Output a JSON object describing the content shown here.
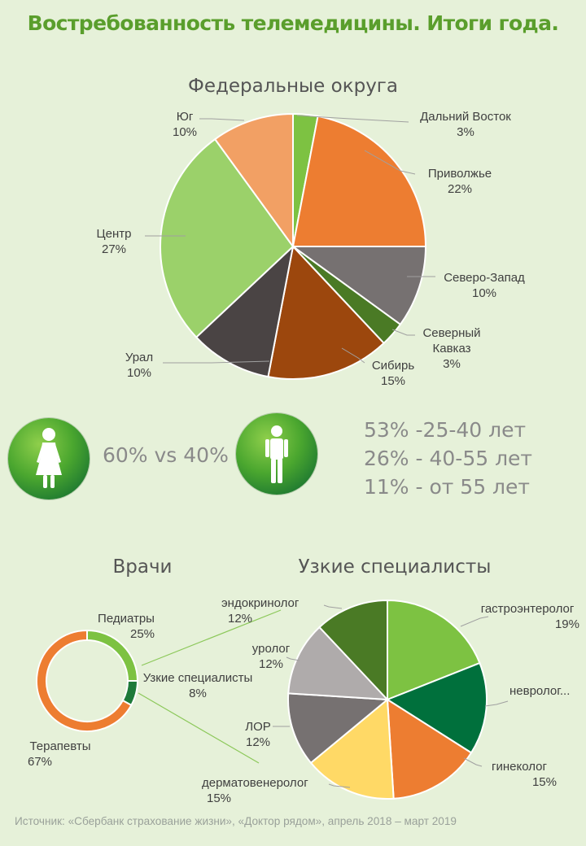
{
  "title": "Востребованность телемедицины. Итоги года.",
  "gender": {
    "comparison": "60% vs 40%",
    "female_icon": "female-figure-icon",
    "male_icon": "male-figure-icon"
  },
  "ages": [
    "53% -25-40 лет",
    "26% - 40-55 лет",
    "11% - от 55 лет"
  ],
  "source": "Источник: «Сбербанк страхование жизни», «Доктор рядом», апрель 2018 – март 2019",
  "colors": {
    "background": "#e6f1d9",
    "title": "#5a9e2c",
    "badge_green": "#3c9a32",
    "connector": "#8cc85a"
  },
  "chart_data": [
    {
      "type": "pie",
      "title": "Федеральные округа",
      "slices": [
        {
          "label": "Дальний Восток",
          "value": 3,
          "display": "3%",
          "color": "#7dc242"
        },
        {
          "label": "Приволжье",
          "value": 22,
          "display": "22%",
          "color": "#ed7d31"
        },
        {
          "label": "Северо-Запад",
          "value": 10,
          "display": "10%",
          "color": "#767171"
        },
        {
          "label": "Северный Кавказ",
          "value": 3,
          "display": "3%",
          "color": "#4a7a25"
        },
        {
          "label": "Сибирь",
          "value": 15,
          "display": "15%",
          "color": "#9c470d"
        },
        {
          "label": "Урал",
          "value": 10,
          "display": "10%",
          "color": "#4a4444"
        },
        {
          "label": "Центр",
          "value": 27,
          "display": "27%",
          "color": "#9bd16a"
        },
        {
          "label": "Юг",
          "value": 10,
          "display": "10%",
          "color": "#f2a064"
        }
      ]
    },
    {
      "type": "pie",
      "variant": "donut",
      "title": "Врачи",
      "slices": [
        {
          "label": "Педиатры",
          "value": 25,
          "display": "25%",
          "color": "#7dc242"
        },
        {
          "label": "Узкие специалисты",
          "value": 8,
          "display": "8%",
          "color": "#1e7a3a"
        },
        {
          "label": "Терапевты",
          "value": 67,
          "display": "67%",
          "color": "#ed7d31"
        }
      ]
    },
    {
      "type": "pie",
      "title": "Узкие специалисты",
      "slices": [
        {
          "label": "гастроэнтеролог",
          "value": 19,
          "display": "19%",
          "color": "#7dc242"
        },
        {
          "label": "невролог...",
          "value": 15,
          "display": "",
          "color": "#00703c"
        },
        {
          "label": "гинеколог",
          "value": 15,
          "display": "15%",
          "color": "#ed7d31"
        },
        {
          "label": "дерматовенеролог",
          "value": 15,
          "display": "15%",
          "color": "#ffd966"
        },
        {
          "label": "ЛОР",
          "value": 12,
          "display": "12%",
          "color": "#767171"
        },
        {
          "label": "уролог",
          "value": 12,
          "display": "12%",
          "color": "#afabab"
        },
        {
          "label": "эндокринолог",
          "value": 12,
          "display": "12%",
          "color": "#4a7a25"
        }
      ]
    }
  ]
}
